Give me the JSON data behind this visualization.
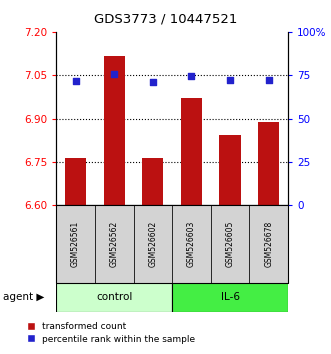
{
  "title": "GDS3773 / 10447521",
  "samples": [
    "GSM526561",
    "GSM526562",
    "GSM526602",
    "GSM526603",
    "GSM526605",
    "GSM526678"
  ],
  "bar_values": [
    6.762,
    7.115,
    6.762,
    6.97,
    6.842,
    6.888
  ],
  "bar_bottom": 6.6,
  "percentile_values": [
    71.5,
    75.5,
    71.0,
    74.5,
    72.5,
    72.5
  ],
  "ylim_left": [
    6.6,
    7.2
  ],
  "ylim_right": [
    0,
    100
  ],
  "yticks_left": [
    6.6,
    6.75,
    6.9,
    7.05,
    7.2
  ],
  "yticks_right": [
    0,
    25,
    50,
    75,
    100
  ],
  "ytick_labels_right": [
    "0",
    "25",
    "50",
    "75",
    "100%"
  ],
  "hlines": [
    6.75,
    6.9,
    7.05
  ],
  "bar_color": "#bb1111",
  "dot_color": "#2222cc",
  "control_color": "#ccffcc",
  "il6_color": "#44ee44",
  "control_label": "control",
  "il6_label": "IL-6",
  "agent_label": "agent",
  "legend_bar_label": "transformed count",
  "legend_dot_label": "percentile rank within the sample",
  "bar_width": 0.55
}
